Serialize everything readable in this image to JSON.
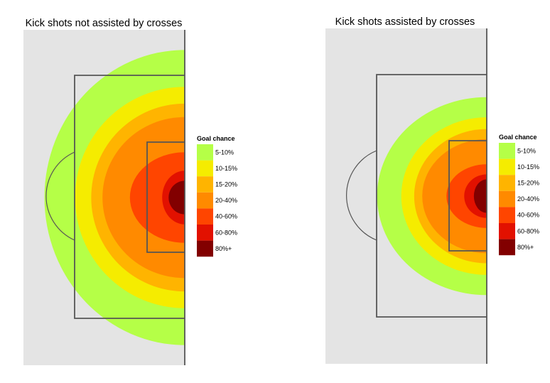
{
  "chart_data": [
    {
      "type": "heatmap",
      "title": "Kick shots not assisted by crosses",
      "legend": {
        "title": "Goal chance",
        "placement": "right",
        "entries": [
          {
            "label": "5-10%",
            "color": "#b5ff47"
          },
          {
            "label": "10-15%",
            "color": "#f5ec00"
          },
          {
            "label": "15-20%",
            "color": "#ffb400"
          },
          {
            "label": "20-40%",
            "color": "#ff8a00"
          },
          {
            "label": "40-60%",
            "color": "#ff4500"
          },
          {
            "label": "60-80%",
            "color": "#e21100"
          },
          {
            "label": "80%+",
            "color": "#820000"
          }
        ]
      },
      "contours": [
        {
          "band": "5-10%",
          "reach": 0.87,
          "spread": 0.88
        },
        {
          "band": "10-15%",
          "reach": 0.68,
          "spread": 0.66
        },
        {
          "band": "15-20%",
          "reach": 0.58,
          "spread": 0.56
        },
        {
          "band": "20-40%",
          "reach": 0.51,
          "spread": 0.48
        },
        {
          "band": "40-60%",
          "reach": 0.34,
          "spread": 0.27
        },
        {
          "band": "60-80%",
          "reach": 0.14,
          "spread": 0.16
        },
        {
          "band": "80%+",
          "reach": 0.1,
          "spread": 0.1
        }
      ]
    },
    {
      "type": "heatmap",
      "title": "Kick shots assisted by crosses",
      "legend": {
        "title": "Goal chance",
        "placement": "right",
        "entries": [
          {
            "label": "5-10%",
            "color": "#b5ff47"
          },
          {
            "label": "10-15%",
            "color": "#f5ec00"
          },
          {
            "label": "15-20%",
            "color": "#ffb400"
          },
          {
            "label": "20-40%",
            "color": "#ff8a00"
          },
          {
            "label": "40-60%",
            "color": "#ff4500"
          },
          {
            "label": "60-80%",
            "color": "#e21100"
          },
          {
            "label": "80%+",
            "color": "#820000"
          }
        ]
      },
      "contours": [
        {
          "band": "5-10%",
          "reach": 0.68,
          "spread": 0.59
        },
        {
          "band": "10-15%",
          "reach": 0.53,
          "spread": 0.47
        },
        {
          "band": "15-20%",
          "reach": 0.45,
          "spread": 0.4
        },
        {
          "band": "20-40%",
          "reach": 0.4,
          "spread": 0.34
        },
        {
          "band": "40-60%",
          "reach": 0.25,
          "spread": 0.19
        },
        {
          "band": "60-80%",
          "reach": 0.14,
          "spread": 0.13
        },
        {
          "band": "80%+",
          "reach": 0.08,
          "spread": 0.1
        }
      ]
    }
  ]
}
